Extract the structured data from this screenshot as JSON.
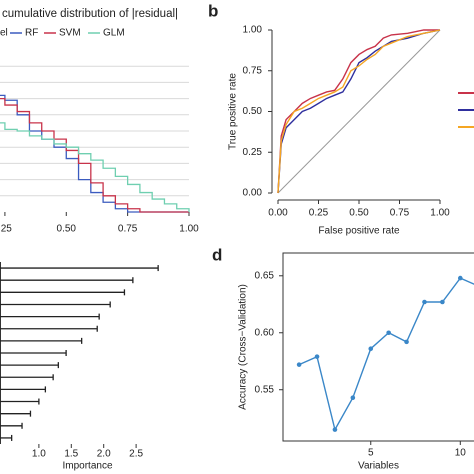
{
  "chart_data": [
    {
      "type": "step",
      "title": "cumulative distribution of |residual|",
      "legend_title": "el",
      "x": [
        0.22,
        0.25,
        0.3,
        0.35,
        0.4,
        0.45,
        0.5,
        0.55,
        0.6,
        0.65,
        0.7,
        0.75,
        0.8,
        0.85,
        0.9,
        0.95,
        1.0
      ],
      "series": [
        {
          "name": "RF",
          "color": "#3b5bbf",
          "values": [
            0.72,
            0.69,
            0.6,
            0.5,
            0.45,
            0.4,
            0.33,
            0.2,
            0.12,
            0.06,
            0.02,
            0,
            0,
            0,
            0,
            0,
            0
          ]
        },
        {
          "name": "SVM",
          "color": "#c8334a",
          "values": [
            0.7,
            0.66,
            0.62,
            0.55,
            0.5,
            0.45,
            0.38,
            0.3,
            0.18,
            0.1,
            0.05,
            0.02,
            0,
            0,
            0,
            0,
            0
          ]
        },
        {
          "name": "GLM",
          "color": "#6fcfb0",
          "values": [
            0.55,
            0.51,
            0.5,
            0.47,
            0.45,
            0.42,
            0.4,
            0.36,
            0.32,
            0.27,
            0.22,
            0.17,
            0.12,
            0.08,
            0.05,
            0.02,
            0
          ]
        }
      ],
      "xlim": [
        0.23,
        1.0
      ],
      "xticks": [
        {
          "value": 0.25,
          "label": ".25"
        },
        {
          "value": 0.5,
          "label": "0.50"
        },
        {
          "value": 0.75,
          "label": "0.75"
        },
        {
          "value": 1,
          "label": "1.00"
        }
      ],
      "ylim": [
        0,
        1
      ],
      "yticks": [
        0.1,
        0.2,
        0.3,
        0.4,
        0.5,
        0.6,
        0.7,
        0.8,
        0.9
      ],
      "grid": true
    },
    {
      "type": "line",
      "label": "b",
      "xlabel": "False positive rate",
      "ylabel": "True positive rate",
      "x": [
        0,
        0.02,
        0.05,
        0.1,
        0.15,
        0.2,
        0.25,
        0.3,
        0.35,
        0.4,
        0.45,
        0.5,
        0.55,
        0.6,
        0.65,
        0.7,
        0.8,
        0.9,
        1.0
      ],
      "series": [
        {
          "color": "#c8334a",
          "values": [
            0,
            0.35,
            0.45,
            0.5,
            0.55,
            0.58,
            0.6,
            0.62,
            0.63,
            0.7,
            0.8,
            0.85,
            0.88,
            0.9,
            0.95,
            0.97,
            0.98,
            1,
            1
          ]
        },
        {
          "color": "#2f2f9e",
          "values": [
            0,
            0.3,
            0.4,
            0.45,
            0.5,
            0.52,
            0.55,
            0.58,
            0.6,
            0.62,
            0.7,
            0.8,
            0.83,
            0.87,
            0.9,
            0.93,
            0.95,
            0.98,
            1
          ]
        },
        {
          "color": "#f5a623",
          "values": [
            0,
            0.32,
            0.42,
            0.5,
            0.52,
            0.55,
            0.58,
            0.6,
            0.62,
            0.65,
            0.75,
            0.78,
            0.82,
            0.85,
            0.9,
            0.92,
            0.96,
            0.98,
            1
          ]
        }
      ],
      "xlim": [
        0,
        1
      ],
      "ylim": [
        0,
        1
      ],
      "xticks": [
        {
          "value": 0,
          "label": "0.00"
        },
        0.25,
        {
          "value": 0.5,
          "label": "0.50"
        },
        0.75,
        {
          "value": 1,
          "label": "1.00"
        }
      ],
      "yticks": [
        {
          "value": 0,
          "label": "0.00"
        },
        0.25,
        {
          "value": 0.5,
          "label": "0.50"
        },
        0.75,
        {
          "value": 1,
          "label": "1.00"
        }
      ],
      "diagonal": true
    },
    {
      "type": "lollipop",
      "xlabel": "Importance",
      "categories": [
        null,
        null,
        null,
        null,
        null,
        null,
        null,
        null,
        null,
        null,
        null,
        null,
        null,
        null,
        null
      ],
      "values": [
        2.84,
        2.45,
        2.32,
        2.1,
        1.93,
        1.9,
        1.66,
        1.42,
        1.3,
        1.22,
        1.1,
        1.0,
        0.87,
        0.74,
        0.58
      ],
      "color": "#222222",
      "xlim": [
        0.4,
        3.1
      ],
      "xticks": [
        {
          "value": 1,
          "label": "1.0"
        },
        1.5,
        {
          "value": 2,
          "label": "2.0"
        },
        2.5
      ]
    },
    {
      "type": "line",
      "label": "d",
      "xlabel": "Variables",
      "ylabel": "Accuracy (Cross−Validation)",
      "x": [
        1,
        2,
        3,
        4,
        5,
        6,
        7,
        8,
        9,
        10,
        11
      ],
      "series": [
        {
          "color": "#3a87c8",
          "values": [
            0.572,
            0.579,
            0.515,
            0.543,
            0.586,
            0.6,
            0.592,
            0.627,
            0.627,
            0.648,
            0.641
          ]
        }
      ],
      "markers": true,
      "box": true,
      "xlim": [
        0.1,
        11.1
      ],
      "xticks": [
        5,
        10
      ],
      "ylim": [
        0.505,
        0.67
      ],
      "yticks": [
        0.55,
        {
          "value": 0.6,
          "label": "0.60"
        },
        0.65
      ]
    }
  ]
}
